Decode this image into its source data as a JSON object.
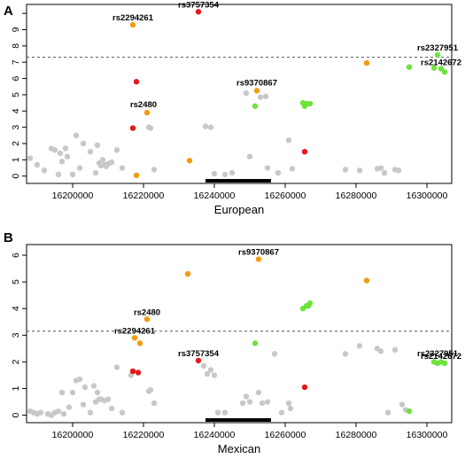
{
  "colors": {
    "grey": "#c8c8c8",
    "red": "#e41a1c",
    "orange": "#f39c12",
    "green": "#6ee33a",
    "frame": "#000000",
    "threshold": "#555555"
  },
  "chart_data": [
    {
      "type": "scatter",
      "panel": "A",
      "xlabel": "European",
      "ylabel": "",
      "xlim": [
        16187000,
        16307000
      ],
      "ylim": [
        -0.45,
        10.55
      ],
      "xticks": [
        16200000,
        16220000,
        16240000,
        16260000,
        16280000,
        16300000
      ],
      "xtick_labels": [
        "16200000",
        "16220000",
        "16240000",
        "16260000",
        "16280000",
        "16300000"
      ],
      "yticks": [
        0,
        1,
        2,
        3,
        4,
        5,
        6,
        7,
        8,
        9,
        10
      ],
      "ytick_labels": [
        "0",
        "1",
        "2",
        "3",
        "4",
        "5",
        "6",
        "7",
        "8",
        "9",
        ""
      ],
      "threshold": 7.3,
      "gene_bar": [
        16237500,
        16256000
      ],
      "labels": [
        {
          "text": "rs3757354",
          "x": 16235500,
          "y": 10.1
        },
        {
          "text": "rs2294261",
          "x": 16217000,
          "y": 9.3
        },
        {
          "text": "rs2327951",
          "x": 16303000,
          "y": 7.45
        },
        {
          "text": "rs2142672",
          "x": 16304000,
          "y": 6.55
        },
        {
          "text": "rs9370867",
          "x": 16252000,
          "y": 5.3
        },
        {
          "text": "rs2480",
          "x": 16220000,
          "y": 3.95
        }
      ],
      "series": [
        {
          "color": "grey",
          "points": [
            [
              16188000,
              1.1
            ],
            [
              16190000,
              0.7
            ],
            [
              16192000,
              0.35
            ],
            [
              16194000,
              1.7
            ],
            [
              16195000,
              1.6
            ],
            [
              16196000,
              0.1
            ],
            [
              16196500,
              1.4
            ],
            [
              16197000,
              0.9
            ],
            [
              16198000,
              1.7
            ],
            [
              16198500,
              1.2
            ],
            [
              16200000,
              0.1
            ],
            [
              16201000,
              2.5
            ],
            [
              16202000,
              0.5
            ],
            [
              16203000,
              2.0
            ],
            [
              16205000,
              1.5
            ],
            [
              16206500,
              0.2
            ],
            [
              16207000,
              1.9
            ],
            [
              16207500,
              0.8
            ],
            [
              16208000,
              0.65
            ],
            [
              16208500,
              1.0
            ],
            [
              16209000,
              0.7
            ],
            [
              16209500,
              0.6
            ],
            [
              16210000,
              0.75
            ],
            [
              16210500,
              0.8
            ],
            [
              16211000,
              0.85
            ],
            [
              16212500,
              1.6
            ],
            [
              16214000,
              0.5
            ],
            [
              16221500,
              3.0
            ],
            [
              16222000,
              2.95
            ],
            [
              16223000,
              0.4
            ],
            [
              16237500,
              3.05
            ],
            [
              16239000,
              3.0
            ],
            [
              16240000,
              0.15
            ],
            [
              16243000,
              0.1
            ],
            [
              16245000,
              0.2
            ],
            [
              16249000,
              5.1
            ],
            [
              16250000,
              1.2
            ],
            [
              16253000,
              4.85
            ],
            [
              16254500,
              4.9
            ],
            [
              16255000,
              0.5
            ],
            [
              16258000,
              0.2
            ],
            [
              16261000,
              2.2
            ],
            [
              16262000,
              0.45
            ],
            [
              16277000,
              0.4
            ],
            [
              16281000,
              0.35
            ],
            [
              16286000,
              0.45
            ],
            [
              16287000,
              0.5
            ],
            [
              16288000,
              0.2
            ],
            [
              16291000,
              0.4
            ],
            [
              16292000,
              0.35
            ]
          ]
        },
        {
          "color": "red",
          "points": [
            [
              16235500,
              10.1
            ],
            [
              16218000,
              5.8
            ],
            [
              16217000,
              2.95
            ],
            [
              16265500,
              1.5
            ]
          ]
        },
        {
          "color": "orange",
          "points": [
            [
              16217000,
              9.3
            ],
            [
              16283000,
              6.95
            ],
            [
              16252000,
              5.25
            ],
            [
              16221000,
              3.9
            ],
            [
              16233000,
              0.95
            ],
            [
              16218000,
              0.05
            ]
          ]
        },
        {
          "color": "green",
          "points": [
            [
              16303000,
              7.45
            ],
            [
              16302000,
              6.65
            ],
            [
              16304000,
              6.6
            ],
            [
              16305000,
              6.4
            ],
            [
              16295000,
              6.7
            ],
            [
              16265000,
              4.5
            ],
            [
              16265500,
              4.3
            ],
            [
              16266000,
              4.45
            ],
            [
              16267000,
              4.45
            ],
            [
              16251500,
              4.3
            ]
          ]
        }
      ]
    },
    {
      "type": "scatter",
      "panel": "B",
      "xlabel": "Mexican",
      "ylabel": "",
      "xlim": [
        16187000,
        16307000
      ],
      "ylim": [
        -0.28,
        6.4
      ],
      "xticks": [
        16200000,
        16220000,
        16240000,
        16260000,
        16280000,
        16300000
      ],
      "xtick_labels": [
        "16200000",
        "16220000",
        "16240000",
        "16260000",
        "16280000",
        "16300000"
      ],
      "yticks": [
        0,
        1,
        2,
        3,
        4,
        5,
        6
      ],
      "ytick_labels": [
        "0",
        "1",
        "2",
        "3",
        "4",
        "5",
        "6"
      ],
      "threshold": 3.15,
      "gene_bar": [
        16237500,
        16256000
      ],
      "labels": [
        {
          "text": "rs9370867",
          "x": 16252500,
          "y": 5.85
        },
        {
          "text": "rs2480",
          "x": 16221000,
          "y": 3.6
        },
        {
          "text": "rs2294261",
          "x": 16217500,
          "y": 2.9
        },
        {
          "text": "rs3757354",
          "x": 16235500,
          "y": 2.05
        },
        {
          "text": "rs2327951",
          "x": 16303000,
          "y": 2.05
        },
        {
          "text": "rs2142672",
          "x": 16304000,
          "y": 1.95
        }
      ],
      "series": [
        {
          "color": "grey",
          "points": [
            [
              16188000,
              0.15
            ],
            [
              16189000,
              0.1
            ],
            [
              16190000,
              0.05
            ],
            [
              16191000,
              0.1
            ],
            [
              16193000,
              0.05
            ],
            [
              16194000,
              0.0
            ],
            [
              16195000,
              0.1
            ],
            [
              16196000,
              0.15
            ],
            [
              16197000,
              0.85
            ],
            [
              16197500,
              0.05
            ],
            [
              16199000,
              0.3
            ],
            [
              16200000,
              0.85
            ],
            [
              16201000,
              1.3
            ],
            [
              16202000,
              1.35
            ],
            [
              16203000,
              0.4
            ],
            [
              16203500,
              1.05
            ],
            [
              16205000,
              0.1
            ],
            [
              16206000,
              1.1
            ],
            [
              16206500,
              0.5
            ],
            [
              16207000,
              0.85
            ],
            [
              16207500,
              0.6
            ],
            [
              16208000,
              0.6
            ],
            [
              16209000,
              0.55
            ],
            [
              16210000,
              0.6
            ],
            [
              16211000,
              0.25
            ],
            [
              16212500,
              1.8
            ],
            [
              16214000,
              0.1
            ],
            [
              16216500,
              1.5
            ],
            [
              16221500,
              0.9
            ],
            [
              16222000,
              0.95
            ],
            [
              16223000,
              0.45
            ],
            [
              16237000,
              1.85
            ],
            [
              16238000,
              1.55
            ],
            [
              16239000,
              1.7
            ],
            [
              16240000,
              1.5
            ],
            [
              16241000,
              0.1
            ],
            [
              16243000,
              0.1
            ],
            [
              16248000,
              0.45
            ],
            [
              16249000,
              0.7
            ],
            [
              16250000,
              0.5
            ],
            [
              16252500,
              0.85
            ],
            [
              16253500,
              0.45
            ],
            [
              16255000,
              0.5
            ],
            [
              16257000,
              2.3
            ],
            [
              16259000,
              0.1
            ],
            [
              16261000,
              0.45
            ],
            [
              16261500,
              0.25
            ],
            [
              16277000,
              2.3
            ],
            [
              16281000,
              2.6
            ],
            [
              16286000,
              2.5
            ],
            [
              16287000,
              2.4
            ],
            [
              16289000,
              0.1
            ],
            [
              16291000,
              2.45
            ],
            [
              16293000,
              0.4
            ],
            [
              16294000,
              0.2
            ]
          ]
        },
        {
          "color": "red",
          "points": [
            [
              16235500,
              2.05
            ],
            [
              16217000,
              1.65
            ],
            [
              16218500,
              1.6
            ],
            [
              16265500,
              1.05
            ]
          ]
        },
        {
          "color": "orange",
          "points": [
            [
              16252500,
              5.85
            ],
            [
              16232500,
              5.3
            ],
            [
              16283000,
              5.05
            ],
            [
              16221000,
              3.6
            ],
            [
              16217500,
              2.9
            ],
            [
              16219000,
              2.7
            ]
          ]
        },
        {
          "color": "green",
          "points": [
            [
              16265000,
              4.0
            ],
            [
              16266000,
              4.1
            ],
            [
              16266500,
              4.1
            ],
            [
              16267000,
              4.2
            ],
            [
              16251500,
              2.7
            ],
            [
              16302000,
              2.0
            ],
            [
              16303000,
              1.95
            ],
            [
              16304000,
              2.0
            ],
            [
              16305000,
              1.95
            ],
            [
              16295000,
              0.15
            ]
          ]
        }
      ]
    }
  ]
}
